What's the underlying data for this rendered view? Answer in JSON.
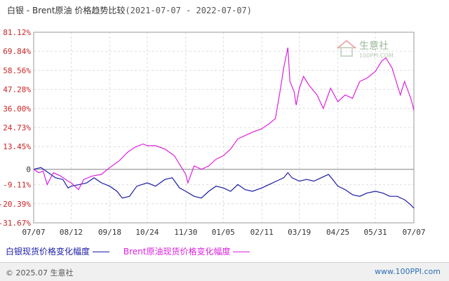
{
  "title": "白银 - Brent原油 价格趋势比较",
  "date_range": "(2021-07-07 - 2022-07-07)",
  "watermark": {
    "name": "生意社",
    "url": "100PPI.COM"
  },
  "legend": [
    {
      "label": "白银现货价格变化幅度",
      "color": "#1a1aa6"
    },
    {
      "label": "Brent原油现货价格变化幅度",
      "color": "#dd22dd"
    }
  ],
  "footer": {
    "copyright": "© 2025.07 生意社",
    "site": "www.100PPI.com"
  },
  "colors": {
    "zero_line": "#aaaaaa",
    "grid": "#dddddd",
    "y_tick_text": "#cc2222",
    "axis_text": "#333333"
  },
  "chart_data": {
    "type": "line",
    "ylabel_unit": "%",
    "ylim": [
      -31.67,
      81.12
    ],
    "yticks": [
      81.12,
      69.84,
      58.56,
      47.28,
      36.0,
      24.73,
      13.45,
      0,
      -9.11,
      -20.39,
      -31.67
    ],
    "ytick_labels": [
      "81.12%",
      "69.84%",
      "58.56%",
      "47.28%",
      "36.00%",
      "24.73%",
      "13.45%",
      "0",
      "-9.11%",
      "-20.39%",
      "-31.67%"
    ],
    "xlim": [
      "2021-07-07",
      "2022-07-07"
    ],
    "xticks": [
      "2021-07-07",
      "2021-08-12",
      "2021-09-18",
      "2021-10-24",
      "2021-11-30",
      "2022-01-05",
      "2022-02-11",
      "2022-03-19",
      "2022-04-25",
      "2022-05-31",
      "2022-07-07"
    ],
    "xtick_labels": [
      "07/07",
      "08/12",
      "09/18",
      "10/24",
      "11/30",
      "01/05",
      "02/11",
      "03/19",
      "04/25",
      "05/31",
      "07/07"
    ],
    "grid": true,
    "legend_position": "bottom",
    "series": [
      {
        "name": "白银现货价格变化幅度",
        "color": "#1a1aa6",
        "points": [
          [
            "2021-07-07",
            0
          ],
          [
            "2021-07-14",
            1
          ],
          [
            "2021-07-21",
            -2
          ],
          [
            "2021-07-28",
            -5
          ],
          [
            "2021-08-04",
            -6
          ],
          [
            "2021-08-09",
            -11
          ],
          [
            "2021-08-12",
            -10
          ],
          [
            "2021-08-20",
            -9
          ],
          [
            "2021-08-27",
            -8
          ],
          [
            "2021-09-03",
            -5
          ],
          [
            "2021-09-10",
            -8
          ],
          [
            "2021-09-18",
            -10
          ],
          [
            "2021-09-25",
            -13
          ],
          [
            "2021-09-30",
            -17
          ],
          [
            "2021-10-07",
            -16
          ],
          [
            "2021-10-14",
            -10
          ],
          [
            "2021-10-24",
            -8
          ],
          [
            "2021-11-01",
            -10
          ],
          [
            "2021-11-10",
            -6
          ],
          [
            "2021-11-17",
            -5
          ],
          [
            "2021-11-24",
            -11
          ],
          [
            "2021-11-30",
            -13
          ],
          [
            "2021-12-08",
            -16
          ],
          [
            "2021-12-15",
            -17
          ],
          [
            "2021-12-22",
            -13
          ],
          [
            "2021-12-29",
            -10
          ],
          [
            "2022-01-05",
            -11
          ],
          [
            "2022-01-12",
            -13
          ],
          [
            "2022-01-19",
            -9
          ],
          [
            "2022-01-26",
            -12
          ],
          [
            "2022-02-02",
            -13
          ],
          [
            "2022-02-11",
            -11
          ],
          [
            "2022-02-18",
            -9
          ],
          [
            "2022-02-25",
            -7
          ],
          [
            "2022-03-04",
            -5
          ],
          [
            "2022-03-08",
            -2
          ],
          [
            "2022-03-12",
            -5
          ],
          [
            "2022-03-19",
            -7
          ],
          [
            "2022-03-26",
            -6
          ],
          [
            "2022-04-02",
            -7
          ],
          [
            "2022-04-09",
            -5
          ],
          [
            "2022-04-16",
            -3
          ],
          [
            "2022-04-20",
            -6
          ],
          [
            "2022-04-25",
            -10
          ],
          [
            "2022-05-02",
            -12
          ],
          [
            "2022-05-09",
            -15
          ],
          [
            "2022-05-16",
            -16
          ],
          [
            "2022-05-23",
            -14
          ],
          [
            "2022-05-31",
            -13
          ],
          [
            "2022-06-07",
            -14
          ],
          [
            "2022-06-14",
            -16
          ],
          [
            "2022-06-21",
            -16
          ],
          [
            "2022-06-28",
            -18
          ],
          [
            "2022-07-04",
            -21
          ],
          [
            "2022-07-07",
            -23
          ]
        ]
      },
      {
        "name": "Brent原油现货价格变化幅度",
        "color": "#dd22dd",
        "points": [
          [
            "2021-07-07",
            0
          ],
          [
            "2021-07-12",
            -2
          ],
          [
            "2021-07-16",
            -1
          ],
          [
            "2021-07-20",
            -9
          ],
          [
            "2021-07-26",
            -2
          ],
          [
            "2021-08-02",
            -4
          ],
          [
            "2021-08-09",
            -7
          ],
          [
            "2021-08-12",
            -8
          ],
          [
            "2021-08-19",
            -12
          ],
          [
            "2021-08-24",
            -6
          ],
          [
            "2021-09-01",
            -4
          ],
          [
            "2021-09-10",
            -3
          ],
          [
            "2021-09-18",
            1
          ],
          [
            "2021-09-27",
            5
          ],
          [
            "2021-10-05",
            10
          ],
          [
            "2021-10-12",
            13
          ],
          [
            "2021-10-20",
            15
          ],
          [
            "2021-10-24",
            14
          ],
          [
            "2021-11-01",
            14
          ],
          [
            "2021-11-10",
            12
          ],
          [
            "2021-11-19",
            8
          ],
          [
            "2021-11-26",
            1
          ],
          [
            "2021-11-30",
            -3
          ],
          [
            "2021-12-02",
            -8
          ],
          [
            "2021-12-08",
            2
          ],
          [
            "2021-12-15",
            0
          ],
          [
            "2021-12-22",
            2
          ],
          [
            "2021-12-29",
            6
          ],
          [
            "2022-01-05",
            8
          ],
          [
            "2022-01-12",
            12
          ],
          [
            "2022-01-19",
            18
          ],
          [
            "2022-01-26",
            20
          ],
          [
            "2022-02-02",
            22
          ],
          [
            "2022-02-11",
            24
          ],
          [
            "2022-02-18",
            27
          ],
          [
            "2022-02-24",
            30
          ],
          [
            "2022-03-01",
            48
          ],
          [
            "2022-03-04",
            60
          ],
          [
            "2022-03-08",
            72
          ],
          [
            "2022-03-10",
            52
          ],
          [
            "2022-03-14",
            46
          ],
          [
            "2022-03-16",
            38
          ],
          [
            "2022-03-19",
            48
          ],
          [
            "2022-03-23",
            55
          ],
          [
            "2022-03-28",
            50
          ],
          [
            "2022-04-05",
            44
          ],
          [
            "2022-04-11",
            36
          ],
          [
            "2022-04-18",
            48
          ],
          [
            "2022-04-25",
            40
          ],
          [
            "2022-05-02",
            44
          ],
          [
            "2022-05-09",
            42
          ],
          [
            "2022-05-16",
            52
          ],
          [
            "2022-05-23",
            54
          ],
          [
            "2022-05-31",
            58
          ],
          [
            "2022-06-06",
            64
          ],
          [
            "2022-06-10",
            66
          ],
          [
            "2022-06-16",
            60
          ],
          [
            "2022-06-21",
            50
          ],
          [
            "2022-06-24",
            44
          ],
          [
            "2022-06-28",
            52
          ],
          [
            "2022-07-04",
            42
          ],
          [
            "2022-07-07",
            35
          ]
        ]
      }
    ]
  }
}
